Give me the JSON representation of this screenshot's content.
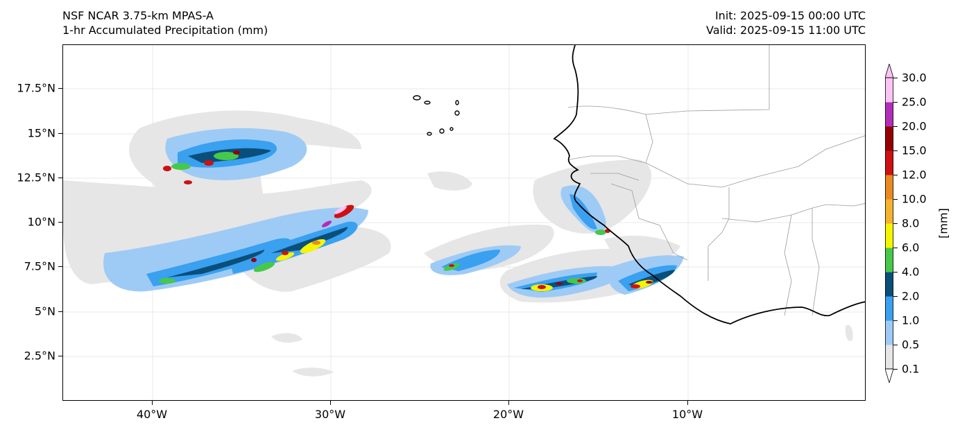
{
  "header": {
    "model": "NSF NCAR 3.75-km MPAS-A",
    "field": "1-hr Accumulated Precipitation (mm)",
    "init": "Init: 2025-09-15 00:00 UTC",
    "valid": "Valid: 2025-09-15 11:00 UTC"
  },
  "map": {
    "lon_range": [
      -45,
      0
    ],
    "lat_range": [
      0,
      20
    ],
    "x_ticks": [
      "40°W",
      "30°W",
      "20°W",
      "10°W"
    ],
    "y_ticks": [
      "2.5°N",
      "5°N",
      "7.5°N",
      "10°N",
      "12.5°N",
      "15°N",
      "17.5°N"
    ],
    "grid": true,
    "features": [
      "coastline",
      "country-borders",
      "cape-verde-islands"
    ]
  },
  "colorbar": {
    "unit": "[mm]",
    "levels": [
      "0.1",
      "0.5",
      "1.0",
      "2.0",
      "4.0",
      "6.0",
      "8.0",
      "10.0",
      "12.0",
      "15.0",
      "20.0",
      "25.0",
      "30.0"
    ],
    "colors": [
      "#e6e6e6",
      "#9ecbf5",
      "#3aa0f0",
      "#0a4f7a",
      "#46c84a",
      "#f5f500",
      "#f5b230",
      "#e88a20",
      "#cf1010",
      "#960000",
      "#b22eb8",
      "#fbc4f4"
    ]
  }
}
